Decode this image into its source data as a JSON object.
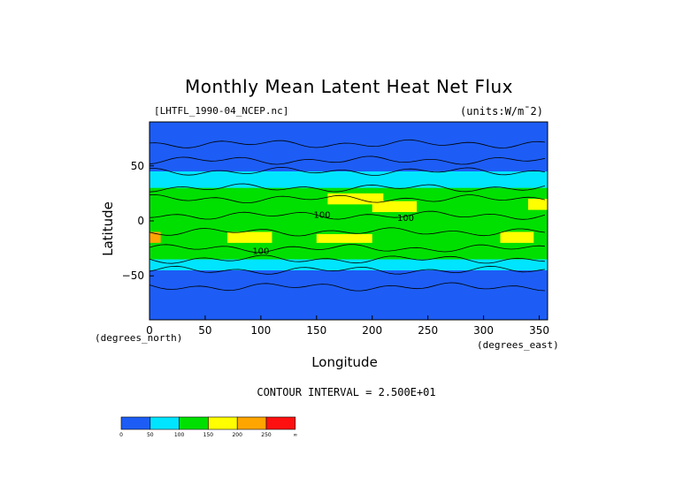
{
  "chart_data": {
    "type": "heatmap",
    "title": "Monthly Mean Latent Heat Net Flux",
    "file_label": "[LHTFL_1990-04_NCEP.nc]",
    "units_label": "(units:W/m¯2)",
    "xlabel": "Longitude",
    "ylabel": "Latitude",
    "x_unit": "(degrees_east)",
    "y_unit": "(degrees_north)",
    "xlim": [
      0,
      357.5
    ],
    "ylim": [
      -90,
      90
    ],
    "x_ticks": [
      "0",
      "50",
      "100",
      "150",
      "200",
      "250",
      "300",
      "350"
    ],
    "x_tick_values": [
      0,
      50,
      100,
      150,
      200,
      250,
      300,
      350
    ],
    "y_ticks": [
      "50",
      "0",
      "−50"
    ],
    "y_tick_values": [
      50,
      0,
      -50
    ],
    "contour_interval_text": "CONTOUR INTERVAL = 2.500E+01",
    "contour_labels": [
      "100",
      "100",
      "100"
    ],
    "color_levels": [
      {
        "from": 0,
        "to": 50,
        "color": "#1d5df5"
      },
      {
        "from": 50,
        "to": 100,
        "color": "#00e5ff"
      },
      {
        "from": 100,
        "to": 150,
        "color": "#00e000"
      },
      {
        "from": 150,
        "to": 200,
        "color": "#ffff00"
      },
      {
        "from": 200,
        "to": 250,
        "color": "#ffa500"
      },
      {
        "from": 250,
        "to": null,
        "color": "#ff1010"
      }
    ],
    "legend_labels": [
      "0",
      "50",
      "100",
      "150",
      "200",
      "250",
      "∞"
    ],
    "regions": [
      {
        "lon": [
          0,
          357.5
        ],
        "lat": [
          -90,
          90
        ],
        "value": 25
      },
      {
        "lon": [
          0,
          357.5
        ],
        "lat": [
          -45,
          45
        ],
        "value": 75
      },
      {
        "lon": [
          0,
          357.5
        ],
        "lat": [
          -35,
          30
        ],
        "value": 120
      },
      {
        "lon": [
          160,
          210
        ],
        "lat": [
          15,
          25
        ],
        "value": 170
      },
      {
        "lon": [
          200,
          240
        ],
        "lat": [
          8,
          18
        ],
        "value": 170
      },
      {
        "lon": [
          340,
          357.5
        ],
        "lat": [
          10,
          20
        ],
        "value": 170
      },
      {
        "lon": [
          70,
          110
        ],
        "lat": [
          -20,
          -10
        ],
        "value": 170
      },
      {
        "lon": [
          150,
          200
        ],
        "lat": [
          -20,
          -12
        ],
        "value": 160
      },
      {
        "lon": [
          315,
          345
        ],
        "lat": [
          -20,
          -10
        ],
        "value": 170
      },
      {
        "lon": [
          0,
          10
        ],
        "lat": [
          -20,
          -10
        ],
        "value": 220
      }
    ]
  }
}
